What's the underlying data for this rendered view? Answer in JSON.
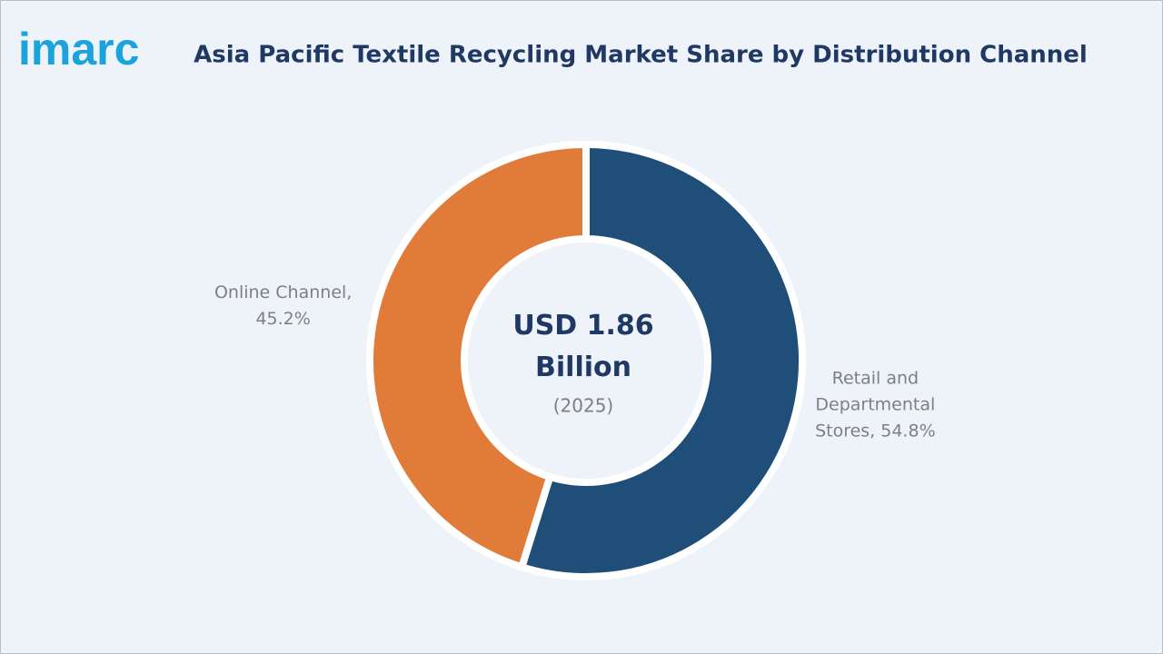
{
  "logo": "imarc",
  "chart_data": {
    "type": "pie",
    "donut": true,
    "title": "Asia Pacific Textile Recycling Market Share by Distribution Channel",
    "center_text": "USD 1.86 Billion",
    "center_subtext": "(2025)",
    "values": [
      54.8,
      45.2
    ],
    "value_labels": [
      "Retail and Departmental Stores, 54.8%",
      "Online Channel, 45.2%"
    ],
    "colors": [
      "#1f4e79",
      "#e07b39"
    ]
  }
}
